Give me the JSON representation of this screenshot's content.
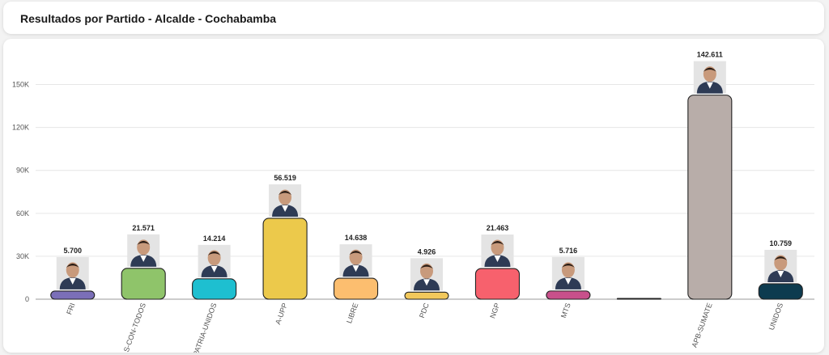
{
  "header": {
    "title": "Resultados por Partido - Alcalde - Cochabamba"
  },
  "chart_data": {
    "type": "bar",
    "title": "",
    "xlabel": "",
    "ylabel": "",
    "ylim": [
      0,
      165000
    ],
    "yticks": [
      "0",
      "30K",
      "60K",
      "90K",
      "120K",
      "150K"
    ],
    "ytick_values": [
      0,
      30000,
      60000,
      90000,
      120000,
      150000
    ],
    "grid": true,
    "categories": [
      "FRI",
      "S-CON-TODOS",
      "PATRIA-UNIDOS",
      "A-UPP",
      "LIBRE",
      "PDC",
      "NGP",
      "MTS",
      "",
      "APB-SUMATE",
      "UNIDOS"
    ],
    "values": [
      5700,
      21571,
      14214,
      56519,
      14638,
      4926,
      21463,
      5716,
      0,
      142611,
      10759
    ],
    "value_labels": [
      "5.700",
      "21.571",
      "14.214",
      "56.519",
      "14.638",
      "4.926",
      "21.463",
      "5.716",
      "",
      "142.611",
      "10.759"
    ],
    "colors": [
      "#7b6fb8",
      "#8fc46a",
      "#1ebfd0",
      "#ecc94b",
      "#fcbe6f",
      "#f2c85b",
      "#f7616d",
      "#c8508b",
      "#555555",
      "#b8ada9",
      "#0d3b4f"
    ],
    "photo_icons": [
      "person-photo",
      "person-photo",
      "person-photo",
      "person-photo",
      "person-photo",
      "person-photo",
      "person-photo",
      "person-photo",
      "",
      "person-photo",
      "person-photo"
    ]
  }
}
